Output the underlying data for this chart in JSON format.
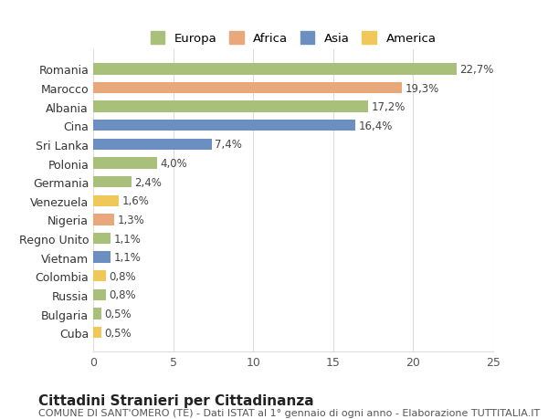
{
  "categories": [
    "Romania",
    "Marocco",
    "Albania",
    "Cina",
    "Sri Lanka",
    "Polonia",
    "Germania",
    "Venezuela",
    "Nigeria",
    "Regno Unito",
    "Vietnam",
    "Colombia",
    "Russia",
    "Bulgaria",
    "Cuba"
  ],
  "values": [
    22.7,
    19.3,
    17.2,
    16.4,
    7.4,
    4.0,
    2.4,
    1.6,
    1.3,
    1.1,
    1.1,
    0.8,
    0.8,
    0.5,
    0.5
  ],
  "labels": [
    "22,7%",
    "19,3%",
    "17,2%",
    "16,4%",
    "7,4%",
    "4,0%",
    "2,4%",
    "1,6%",
    "1,3%",
    "1,1%",
    "1,1%",
    "0,8%",
    "0,8%",
    "0,5%",
    "0,5%"
  ],
  "continent": [
    "Europa",
    "Africa",
    "Europa",
    "Asia",
    "Asia",
    "Europa",
    "Europa",
    "America",
    "Africa",
    "Europa",
    "Asia",
    "America",
    "Europa",
    "Europa",
    "America"
  ],
  "colors": {
    "Europa": "#a8c07a",
    "Africa": "#e8a87c",
    "Asia": "#6a8fc0",
    "America": "#f0c85a"
  },
  "legend_order": [
    "Europa",
    "Africa",
    "Asia",
    "America"
  ],
  "title": "Cittadini Stranieri per Cittadinanza",
  "subtitle": "COMUNE DI SANT'OMERO (TE) - Dati ISTAT al 1° gennaio di ogni anno - Elaborazione TUTTITALIA.IT",
  "xlim": [
    0,
    25
  ],
  "xticks": [
    0,
    5,
    10,
    15,
    20,
    25
  ],
  "bg_color": "#ffffff",
  "grid_color": "#dddddd",
  "bar_height": 0.6,
  "label_fontsize": 8.5,
  "tick_fontsize": 9,
  "title_fontsize": 11,
  "subtitle_fontsize": 8
}
